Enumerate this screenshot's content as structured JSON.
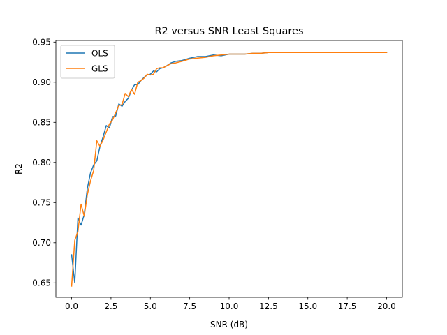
{
  "chart_data": {
    "type": "line",
    "title": "R2 versus SNR Least Squares",
    "xlabel": "SNR (dB)",
    "ylabel": "R2",
    "xlim": [
      -1.0,
      21.0
    ],
    "ylim": [
      0.632,
      0.952
    ],
    "xticks": [
      0.0,
      2.5,
      5.0,
      7.5,
      10.0,
      12.5,
      15.0,
      17.5,
      20.0
    ],
    "xtick_labels": [
      "0.0",
      "2.5",
      "5.0",
      "7.5",
      "10.0",
      "12.5",
      "15.0",
      "17.5",
      "20.0"
    ],
    "yticks": [
      0.65,
      0.7,
      0.75,
      0.8,
      0.85,
      0.9,
      0.95
    ],
    "ytick_labels": [
      "0.65",
      "0.70",
      "0.75",
      "0.80",
      "0.85",
      "0.90",
      "0.95"
    ],
    "grid": false,
    "legend_position": "top-left",
    "series": [
      {
        "name": "OLS",
        "color": "#1f77b4",
        "x": [
          0.0,
          0.2,
          0.4,
          0.6,
          0.8,
          1.0,
          1.2,
          1.4,
          1.6,
          1.8,
          2.0,
          2.2,
          2.4,
          2.6,
          2.8,
          3.0,
          3.2,
          3.4,
          3.6,
          3.8,
          4.0,
          4.2,
          4.4,
          4.6,
          4.8,
          5.0,
          5.2,
          5.4,
          5.6,
          5.8,
          6.0,
          6.3,
          6.6,
          7.0,
          7.5,
          8.0,
          8.5,
          9.0,
          9.5,
          10.0,
          10.5,
          11.0,
          11.5,
          12.0,
          12.5,
          13.0,
          13.5,
          14.0,
          15.0,
          16.0,
          17.0,
          18.0,
          19.0,
          20.0
        ],
        "values": [
          0.685,
          0.65,
          0.731,
          0.722,
          0.735,
          0.768,
          0.787,
          0.797,
          0.802,
          0.82,
          0.832,
          0.846,
          0.843,
          0.857,
          0.858,
          0.873,
          0.87,
          0.876,
          0.88,
          0.89,
          0.897,
          0.897,
          0.902,
          0.906,
          0.909,
          0.91,
          0.914,
          0.913,
          0.917,
          0.918,
          0.92,
          0.924,
          0.926,
          0.927,
          0.93,
          0.932,
          0.932,
          0.934,
          0.933,
          0.935,
          0.935,
          0.935,
          0.936,
          0.936,
          0.937,
          0.937,
          0.937,
          0.937,
          0.937,
          0.937,
          0.937,
          0.937,
          0.937,
          0.937
        ]
      },
      {
        "name": "GLS",
        "color": "#ff7f0e",
        "x": [
          0.0,
          0.2,
          0.4,
          0.6,
          0.8,
          1.0,
          1.2,
          1.4,
          1.6,
          1.8,
          2.0,
          2.2,
          2.4,
          2.6,
          2.8,
          3.0,
          3.2,
          3.4,
          3.6,
          3.8,
          4.0,
          4.2,
          4.4,
          4.6,
          4.8,
          5.0,
          5.2,
          5.4,
          5.6,
          5.8,
          6.0,
          6.3,
          6.6,
          7.0,
          7.5,
          8.0,
          8.5,
          9.0,
          9.5,
          10.0,
          10.5,
          11.0,
          11.5,
          12.0,
          12.5,
          13.0,
          13.5,
          14.0,
          15.0,
          16.0,
          17.0,
          18.0,
          19.0,
          20.0
        ],
        "values": [
          0.646,
          0.703,
          0.714,
          0.748,
          0.733,
          0.76,
          0.777,
          0.79,
          0.827,
          0.82,
          0.828,
          0.838,
          0.848,
          0.853,
          0.862,
          0.871,
          0.872,
          0.886,
          0.882,
          0.891,
          0.885,
          0.9,
          0.902,
          0.905,
          0.91,
          0.909,
          0.91,
          0.917,
          0.918,
          0.918,
          0.92,
          0.923,
          0.924,
          0.926,
          0.929,
          0.93,
          0.931,
          0.933,
          0.934,
          0.935,
          0.935,
          0.935,
          0.936,
          0.936,
          0.937,
          0.937,
          0.937,
          0.937,
          0.937,
          0.937,
          0.937,
          0.937,
          0.937,
          0.937
        ]
      }
    ]
  }
}
